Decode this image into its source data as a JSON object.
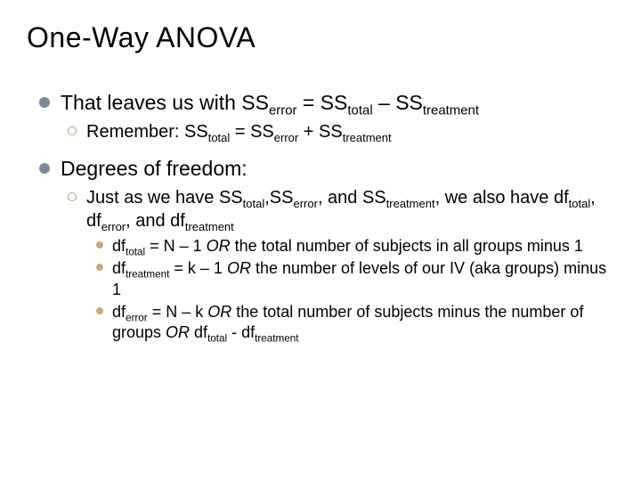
{
  "colors": {
    "bullet_level1": "#7b8a9a",
    "bullet_level2_border": "#b8a080",
    "bullet_level3": "#c9a87a",
    "text": "#000000",
    "background": "#ffffff"
  },
  "typography": {
    "title_fontsize": 32,
    "level1_fontsize": 23,
    "level2_fontsize": 20,
    "level3_fontsize": 18,
    "font_family": "Arial"
  },
  "title": "One-Way ANOVA",
  "items": [
    {
      "level": 1,
      "runs": [
        {
          "t": "That leaves us with SS"
        },
        {
          "t": "error",
          "sub": true
        },
        {
          "t": " = SS"
        },
        {
          "t": "total",
          "sub": true
        },
        {
          "t": " – SS"
        },
        {
          "t": "treatment",
          "sub": true
        }
      ]
    },
    {
      "level": 2,
      "runs": [
        {
          "t": "Remember: SS"
        },
        {
          "t": "total",
          "sub": true
        },
        {
          "t": " = SS"
        },
        {
          "t": "error",
          "sub": true
        },
        {
          "t": " + SS"
        },
        {
          "t": "treatment",
          "sub": true
        }
      ]
    },
    {
      "level": 1,
      "runs": [
        {
          "t": "Degrees of freedom:"
        }
      ]
    },
    {
      "level": 2,
      "runs": [
        {
          "t": "Just as we have SS"
        },
        {
          "t": "total",
          "sub": true
        },
        {
          "t": ",SS"
        },
        {
          "t": "error",
          "sub": true
        },
        {
          "t": ", and SS"
        },
        {
          "t": "treatment",
          "sub": true
        },
        {
          "t": ", we also have df"
        },
        {
          "t": "total",
          "sub": true
        },
        {
          "t": ", df"
        },
        {
          "t": "error",
          "sub": true
        },
        {
          "t": ", and df"
        },
        {
          "t": "treatment",
          "sub": true
        }
      ]
    },
    {
      "level": 3,
      "runs": [
        {
          "t": "df"
        },
        {
          "t": "total",
          "sub": true
        },
        {
          "t": " = N – 1 "
        },
        {
          "t": "OR",
          "ital": true
        },
        {
          "t": " the total number of subjects in all groups minus 1"
        }
      ]
    },
    {
      "level": 3,
      "runs": [
        {
          "t": "df"
        },
        {
          "t": "treatment",
          "sub": true
        },
        {
          "t": " = k – 1 "
        },
        {
          "t": "OR",
          "ital": true
        },
        {
          "t": " the number of levels of our IV (aka groups) minus 1"
        }
      ]
    },
    {
      "level": 3,
      "runs": [
        {
          "t": "df"
        },
        {
          "t": "error",
          "sub": true
        },
        {
          "t": " = N – k "
        },
        {
          "t": "OR",
          "ital": true
        },
        {
          "t": " the total number of subjects minus the number of groups "
        },
        {
          "t": "OR",
          "ital": true
        },
        {
          "t": " df"
        },
        {
          "t": "total",
          "sub": true
        },
        {
          "t": " - df"
        },
        {
          "t": "treatment",
          "sub": true
        }
      ]
    }
  ]
}
